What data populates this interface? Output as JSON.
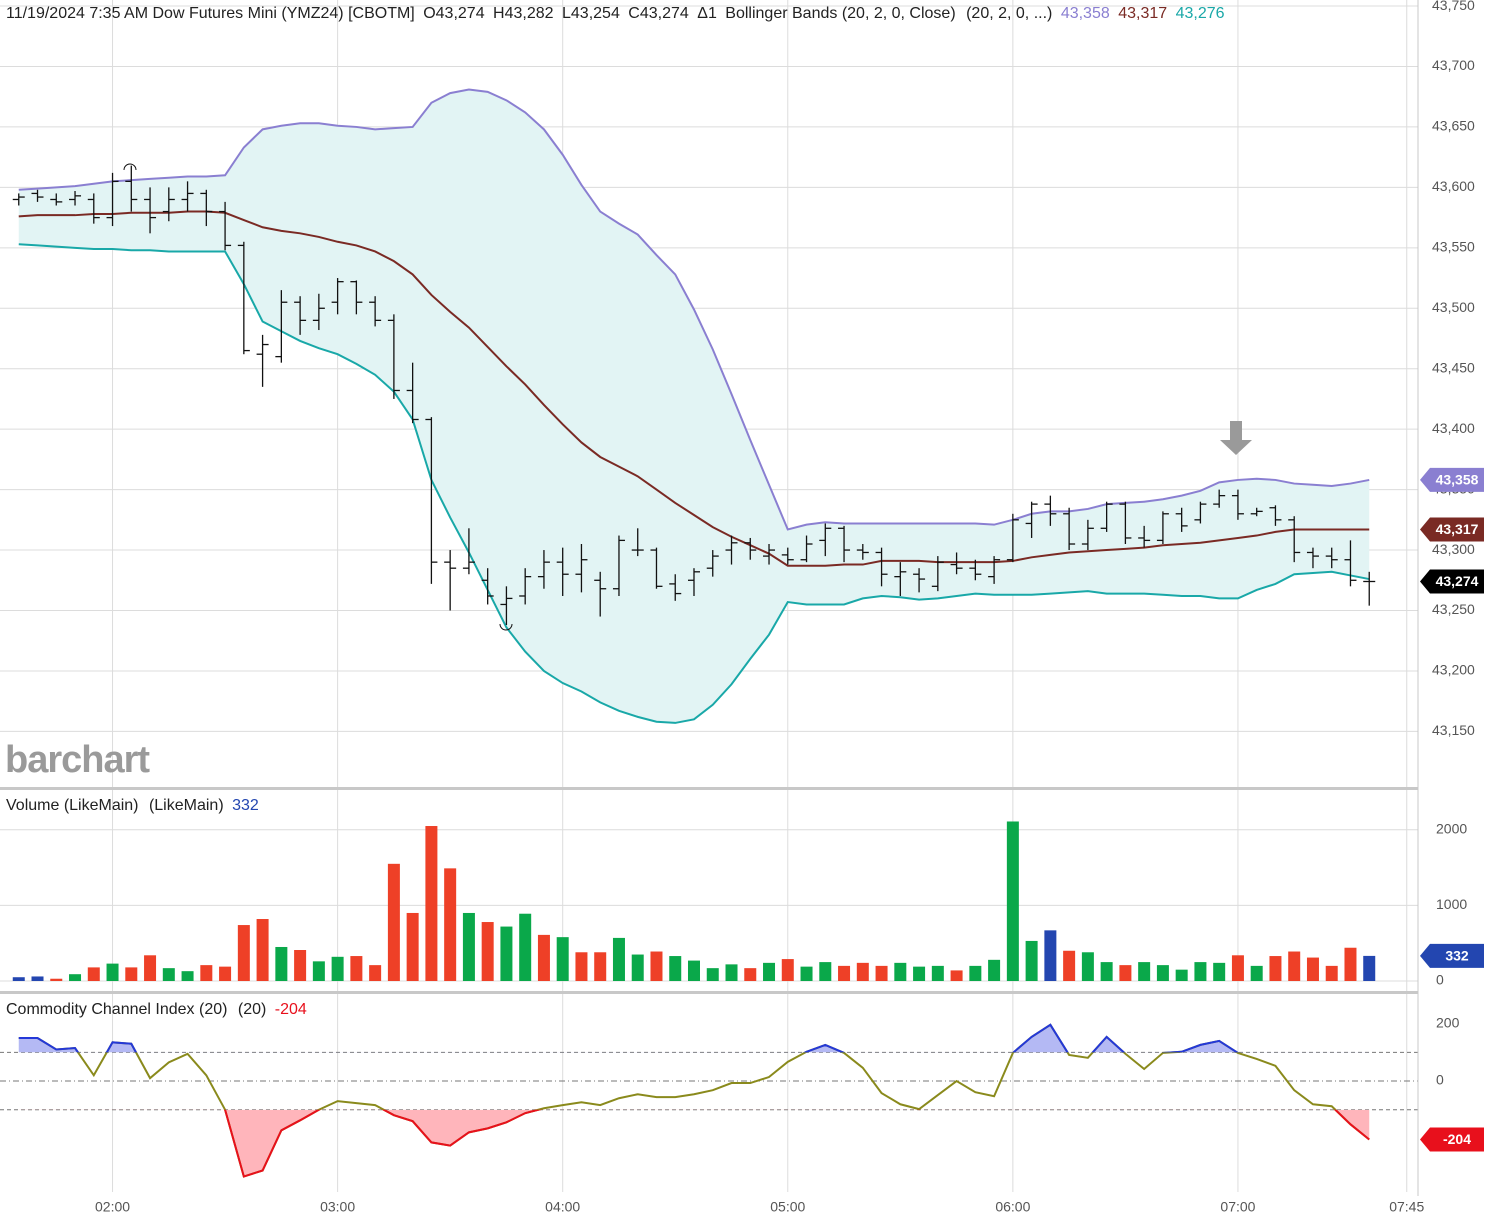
{
  "chart_data": [
    {
      "type": "ohlc",
      "title": "11/19/2024 7:35 AM Dow Futures Mini (YMZ24) [CBOTM]",
      "ohlc_labels": [
        "O43,274",
        "H43,282",
        "L43,254",
        "C43,274",
        "Δ1"
      ],
      "indicator": "Bollinger Bands (20, 2, 0, Close)",
      "indicator_params": "(20, 2, 0, ...)",
      "watermark": "barchart",
      "color": "#111111",
      "close_label": "43,274",
      "close_badge_color": "#000000",
      "band_fill": "#e2f4f4",
      "grid": true,
      "xlim": [
        "01:30",
        "07:48"
      ],
      "xticks": [
        "02:00",
        "03:00",
        "04:00",
        "05:00",
        "06:00",
        "07:00",
        "07:45"
      ],
      "ylim": [
        43104,
        43755
      ],
      "yticks": [
        {
          "value": 43150,
          "label": "43,150"
        },
        {
          "value": 43200,
          "label": "43,200"
        },
        {
          "value": 43250,
          "label": "43,250"
        },
        {
          "value": 43300,
          "label": "43,300"
        },
        {
          "value": 43350,
          "label": "43,350"
        },
        {
          "value": 43400,
          "label": "43,400"
        },
        {
          "value": 43450,
          "label": "43,450"
        },
        {
          "value": 43500,
          "label": "43,500"
        },
        {
          "value": 43550,
          "label": "43,550"
        },
        {
          "value": 43600,
          "label": "43,600"
        },
        {
          "value": 43650,
          "label": "43,650"
        },
        {
          "value": 43700,
          "label": "43,700"
        },
        {
          "value": 43750,
          "label": "43,750"
        }
      ],
      "x": [
        "01:35",
        "01:40",
        "01:45",
        "01:50",
        "01:55",
        "02:00",
        "02:05",
        "02:10",
        "02:15",
        "02:20",
        "02:25",
        "02:30",
        "02:35",
        "02:40",
        "02:45",
        "02:50",
        "02:55",
        "03:00",
        "03:05",
        "03:10",
        "03:15",
        "03:20",
        "03:25",
        "03:30",
        "03:35",
        "03:40",
        "03:45",
        "03:50",
        "03:55",
        "04:00",
        "04:05",
        "04:10",
        "04:15",
        "04:20",
        "04:25",
        "04:30",
        "04:35",
        "04:40",
        "04:45",
        "04:50",
        "04:55",
        "05:00",
        "05:05",
        "05:10",
        "05:15",
        "05:20",
        "05:25",
        "05:30",
        "05:35",
        "05:40",
        "05:45",
        "05:50",
        "05:55",
        "06:00",
        "06:05",
        "06:10",
        "06:15",
        "06:20",
        "06:25",
        "06:30",
        "06:35",
        "06:40",
        "06:45",
        "06:50",
        "06:55",
        "07:00",
        "07:05",
        "07:10",
        "07:15",
        "07:20",
        "07:25",
        "07:30",
        "07:35"
      ],
      "open": [
        43590,
        43595,
        43590,
        43590,
        43590,
        43575,
        43605,
        43590,
        43580,
        43590,
        43595,
        43580,
        43552,
        43462,
        43460,
        43505,
        43490,
        43505,
        43522,
        43505,
        43490,
        43432,
        43408,
        43290,
        43285,
        43275,
        43255,
        43262,
        43278,
        43290,
        43280,
        43275,
        43268,
        43300,
        43300,
        43272,
        43275,
        43285,
        43300,
        43306,
        43295,
        43296,
        43292,
        43308,
        43318,
        43300,
        43298,
        43278,
        43280,
        43270,
        43288,
        43285,
        43278,
        43292,
        43322,
        43338,
        43330,
        43305,
        43318,
        43338,
        43310,
        43308,
        43330,
        43325,
        43338,
        43345,
        43330,
        43335,
        43325,
        43298,
        43295,
        43292,
        43274
      ],
      "high": [
        43595,
        43598,
        43595,
        43597,
        43595,
        43612,
        43618,
        43600,
        43600,
        43605,
        43598,
        43588,
        43555,
        43478,
        43515,
        43510,
        43512,
        43525,
        43523,
        43510,
        43495,
        43455,
        43410,
        43300,
        43318,
        43285,
        43270,
        43285,
        43300,
        43302,
        43305,
        43282,
        43312,
        43318,
        43302,
        43280,
        43285,
        43300,
        43312,
        43310,
        43305,
        43302,
        43312,
        43322,
        43320,
        43305,
        43302,
        43290,
        43285,
        43295,
        43298,
        43292,
        43295,
        43330,
        43340,
        43345,
        43335,
        43325,
        43340,
        43340,
        43320,
        43332,
        43335,
        43340,
        43350,
        43350,
        43335,
        43337,
        43328,
        43302,
        43302,
        43308,
        43282
      ],
      "low": [
        43585,
        43588,
        43585,
        43585,
        43570,
        43568,
        43580,
        43562,
        43572,
        43580,
        43568,
        43548,
        43462,
        43435,
        43455,
        43478,
        43482,
        43495,
        43495,
        43485,
        43425,
        43405,
        43272,
        43250,
        43280,
        43255,
        43238,
        43255,
        43268,
        43262,
        43265,
        43245,
        43262,
        43295,
        43268,
        43258,
        43262,
        43278,
        43288,
        43292,
        43288,
        43288,
        43290,
        43295,
        43290,
        43292,
        43270,
        43262,
        43265,
        43266,
        43280,
        43275,
        43272,
        43290,
        43310,
        43320,
        43300,
        43300,
        43315,
        43305,
        43302,
        43305,
        43315,
        43322,
        43335,
        43325,
        43328,
        43320,
        43290,
        43285,
        43285,
        43270,
        43254
      ],
      "close": [
        43592,
        43592,
        43588,
        43593,
        43575,
        43605,
        43590,
        43575,
        43590,
        43595,
        43580,
        43552,
        43465,
        43470,
        43505,
        43490,
        43500,
        43522,
        43505,
        43490,
        43432,
        43408,
        43290,
        43285,
        43290,
        43262,
        43260,
        43278,
        43290,
        43280,
        43292,
        43268,
        43308,
        43300,
        43270,
        43264,
        43282,
        43295,
        43306,
        43300,
        43300,
        43292,
        43305,
        43318,
        43300,
        43298,
        43280,
        43282,
        43276,
        43290,
        43285,
        43280,
        43292,
        43325,
        43338,
        43330,
        43305,
        43318,
        43338,
        43310,
        43308,
        43330,
        43320,
        43338,
        43345,
        43330,
        43332,
        43325,
        43298,
        43295,
        43292,
        43275,
        43274
      ],
      "series": [
        {
          "color": "#8a7fd1",
          "label": "43,358",
          "badge": true,
          "values": [
            43598,
            43599,
            43600,
            43601,
            43603,
            43605,
            43606,
            43607,
            43608,
            43609,
            43609,
            43610,
            43633,
            43648,
            43651,
            43653,
            43653,
            43651,
            43650,
            43648,
            43649,
            43650,
            43670,
            43678,
            43681,
            43679,
            43672,
            43662,
            43648,
            43627,
            43602,
            43580,
            43570,
            43561,
            43544,
            43528,
            43499,
            43466,
            43429,
            43391,
            43354,
            43317,
            43321,
            43323,
            43322,
            43322,
            43322,
            43322,
            43322,
            43322,
            43322,
            43322,
            43321,
            43325,
            43330,
            43332,
            43332,
            43334,
            43338,
            43339,
            43340,
            43342,
            43345,
            43349,
            43356,
            43358,
            43359,
            43358,
            43355,
            43354,
            43353,
            43355,
            43358
          ]
        },
        {
          "color": "#7a2a24",
          "label": "43,317",
          "badge": true,
          "values": [
            43576,
            43577,
            43577,
            43577,
            43578,
            43578,
            43579,
            43579,
            43579,
            43580,
            43580,
            43579,
            43573,
            43567,
            43564,
            43562,
            43559,
            43555,
            43552,
            43547,
            43539,
            43528,
            43511,
            43497,
            43484,
            43468,
            43452,
            43437,
            43420,
            43404,
            43389,
            43377,
            43369,
            43361,
            43350,
            43339,
            43329,
            43319,
            43311,
            43304,
            43297,
            43287,
            43287,
            43287,
            43288,
            43288,
            43291,
            43291,
            43291,
            43290,
            43290,
            43290,
            43290,
            43291,
            43294,
            43296,
            43298,
            43299,
            43300,
            43301,
            43302,
            43304,
            43305,
            43306,
            43308,
            43310,
            43312,
            43315,
            43317,
            43317,
            43317,
            43317,
            43317
          ]
        },
        {
          "color": "#19a8a8",
          "label": "43,276",
          "badge": false,
          "values": [
            43553,
            43552,
            43551,
            43550,
            43549,
            43549,
            43548,
            43548,
            43547,
            43547,
            43547,
            43547,
            43520,
            43489,
            43481,
            43473,
            43467,
            43462,
            43454,
            43445,
            43431,
            43408,
            43358,
            43327,
            43298,
            43267,
            43236,
            43216,
            43200,
            43190,
            43183,
            43174,
            43167,
            43162,
            43158,
            43157,
            43160,
            43172,
            43189,
            43210,
            43230,
            43257,
            43255,
            43255,
            43255,
            43260,
            43262,
            43261,
            43259,
            43260,
            43262,
            43264,
            43263,
            43263,
            43263,
            43264,
            43265,
            43266,
            43264,
            43264,
            43264,
            43263,
            43262,
            43262,
            43260,
            43260,
            43267,
            43272,
            43280,
            43281,
            43282,
            43279,
            43276
          ]
        }
      ]
    },
    {
      "type": "bar",
      "title": "Volume (LikeMain)",
      "params": "(LikeMain)",
      "title_value_color": "#2346b0",
      "grid": true,
      "ylim": [
        0,
        2500
      ],
      "yticks": [
        0,
        1000,
        2000
      ],
      "values": [
        50,
        60,
        30,
        90,
        180,
        230,
        180,
        340,
        170,
        130,
        210,
        190,
        740,
        820,
        450,
        410,
        260,
        320,
        330,
        210,
        1550,
        900,
        2050,
        1490,
        900,
        780,
        720,
        890,
        610,
        580,
        380,
        380,
        570,
        350,
        390,
        330,
        270,
        170,
        220,
        170,
        240,
        290,
        190,
        250,
        200,
        240,
        200,
        240,
        190,
        200,
        140,
        200,
        280,
        2110,
        530,
        670,
        400,
        380,
        250,
        210,
        250,
        210,
        150,
        250,
        240,
        340,
        200,
        330,
        390,
        310,
        200,
        440,
        332
      ],
      "colors": [
        "#2346b0",
        "#2346b0",
        "#ee4027",
        "#0aa84a",
        "#ee4027",
        "#0aa84a",
        "#ee4027",
        "#ee4027",
        "#0aa84a",
        "#0aa84a",
        "#ee4027",
        "#ee4027",
        "#ee4027",
        "#ee4027",
        "#0aa84a",
        "#ee4027",
        "#0aa84a",
        "#0aa84a",
        "#ee4027",
        "#ee4027",
        "#ee4027",
        "#ee4027",
        "#ee4027",
        "#ee4027",
        "#0aa84a",
        "#ee4027",
        "#0aa84a",
        "#0aa84a",
        "#ee4027",
        "#0aa84a",
        "#ee4027",
        "#ee4027",
        "#0aa84a",
        "#0aa84a",
        "#ee4027",
        "#0aa84a",
        "#0aa84a",
        "#0aa84a",
        "#0aa84a",
        "#ee4027",
        "#0aa84a",
        "#ee4027",
        "#0aa84a",
        "#0aa84a",
        "#ee4027",
        "#ee4027",
        "#ee4027",
        "#0aa84a",
        "#0aa84a",
        "#0aa84a",
        "#ee4027",
        "#0aa84a",
        "#0aa84a",
        "#0aa84a",
        "#0aa84a",
        "#2346b0",
        "#ee4027",
        "#0aa84a",
        "#0aa84a",
        "#ee4027",
        "#0aa84a",
        "#0aa84a",
        "#0aa84a",
        "#0aa84a",
        "#0aa84a",
        "#ee4027",
        "#0aa84a",
        "#ee4027",
        "#ee4027",
        "#ee4027",
        "#ee4027",
        "#ee4027",
        "#2346b0"
      ]
    },
    {
      "type": "line",
      "title": "Commodity Channel Index (20)",
      "params": "(20)",
      "color": "#8a8a1c",
      "overbought_color": "#2438d8",
      "oversold_color": "#e8101c",
      "overbought_fill": "#b4b9f4",
      "oversold_fill": "#ffb5bb",
      "ylim": [
        -380,
        300
      ],
      "yticks": [
        -200,
        0,
        200
      ],
      "levels": [
        100,
        0,
        -100
      ],
      "values": [
        150,
        150,
        110,
        115,
        20,
        135,
        130,
        10,
        65,
        95,
        20,
        -100,
        -333,
        -312,
        -172,
        -137,
        -100,
        -70,
        -77,
        -84,
        -119,
        -140,
        -214,
        -225,
        -179,
        -165,
        -144,
        -112,
        -95,
        -84,
        -74,
        -84,
        -60,
        -46,
        -56,
        -56,
        -46,
        -32,
        -7,
        -7,
        14,
        67,
        102,
        126,
        98,
        46,
        -42,
        -81,
        -98,
        -49,
        0,
        -39,
        -53,
        98,
        154,
        196,
        91,
        81,
        154,
        95,
        42,
        98,
        102,
        126,
        140,
        98,
        77,
        53,
        -32,
        -81,
        -88,
        -151,
        -204
      ]
    }
  ]
}
